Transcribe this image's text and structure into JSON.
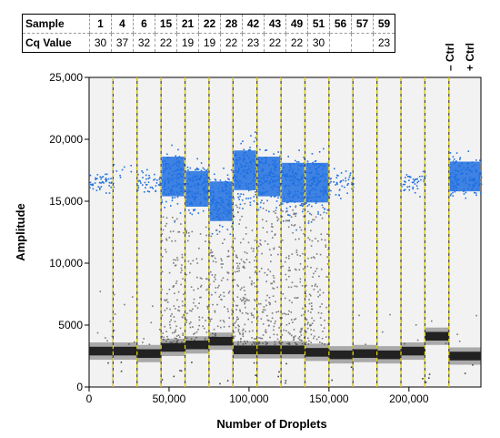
{
  "table": {
    "row_labels": [
      "Sample",
      "Cq Value"
    ],
    "samples": [
      "1",
      "4",
      "6",
      "15",
      "21",
      "22",
      "28",
      "42",
      "43",
      "49",
      "51",
      "56",
      "57",
      "59"
    ],
    "cq_values": [
      "30",
      "37",
      "32",
      "22",
      "19",
      "19",
      "22",
      "23",
      "22",
      "22",
      "30",
      "",
      "",
      "23"
    ]
  },
  "controls": {
    "neg": "– Ctrl",
    "pos": "+ Ctrl"
  },
  "chart_data": {
    "type": "scatter",
    "xlabel": "Number of Droplets",
    "ylabel": "Amplitude",
    "xlim": [
      0,
      245000
    ],
    "ylim": [
      0,
      25000
    ],
    "xticks": [
      0,
      50000,
      100000,
      150000,
      200000
    ],
    "xtick_labels": [
      "0",
      "50,000",
      "100,000",
      "150,000",
      "200,000"
    ],
    "yticks": [
      0,
      5000,
      10000,
      15000,
      20000,
      25000
    ],
    "ytick_labels": [
      "0",
      "5000",
      "10,000",
      "15,000",
      "20,000",
      "25,000"
    ],
    "well_boundaries": [
      15000,
      30000,
      45000,
      60000,
      75000,
      90000,
      105000,
      120000,
      135000,
      150000,
      165000,
      180000,
      195000,
      210000,
      225000
    ],
    "series": [
      {
        "kind": "positive",
        "color": "#1f6fe0",
        "wells": [
          {
            "x_range": [
              0,
              15000
            ],
            "center": 16500,
            "spread": 800,
            "density": "sparse"
          },
          {
            "x_range": [
              15000,
              30000
            ],
            "center": 17500,
            "spread": 500,
            "density": "rare"
          },
          {
            "x_range": [
              30000,
              45000
            ],
            "center": 16500,
            "spread": 800,
            "density": "sparse"
          },
          {
            "x_range": [
              45000,
              60000
            ],
            "center": 17000,
            "spread": 2000,
            "density": "dense"
          },
          {
            "x_range": [
              60000,
              75000
            ],
            "center": 16000,
            "spread": 1800,
            "density": "dense"
          },
          {
            "x_range": [
              75000,
              90000
            ],
            "center": 15000,
            "spread": 2000,
            "density": "dense"
          },
          {
            "x_range": [
              90000,
              105000
            ],
            "center": 17500,
            "spread": 2000,
            "density": "dense"
          },
          {
            "x_range": [
              105000,
              120000
            ],
            "center": 17000,
            "spread": 2000,
            "density": "dense"
          },
          {
            "x_range": [
              120000,
              135000
            ],
            "center": 16500,
            "spread": 2000,
            "density": "dense"
          },
          {
            "x_range": [
              135000,
              150000
            ],
            "center": 16500,
            "spread": 2000,
            "density": "dense"
          },
          {
            "x_range": [
              150000,
              165000
            ],
            "center": 16500,
            "spread": 800,
            "density": "sparse"
          },
          {
            "x_range": [
              195000,
              210000
            ],
            "center": 16500,
            "spread": 800,
            "density": "sparse"
          },
          {
            "x_range": [
              225000,
              245000
            ],
            "center": 17000,
            "spread": 1500,
            "density": "dense"
          }
        ]
      },
      {
        "kind": "negative",
        "color": "#222222",
        "wells": [
          {
            "x_range": [
              0,
              15000
            ],
            "center": 2900
          },
          {
            "x_range": [
              15000,
              30000
            ],
            "center": 2900
          },
          {
            "x_range": [
              30000,
              45000
            ],
            "center": 2700
          },
          {
            "x_range": [
              45000,
              60000
            ],
            "center": 3200
          },
          {
            "x_range": [
              60000,
              75000
            ],
            "center": 3400
          },
          {
            "x_range": [
              75000,
              90000
            ],
            "center": 3700
          },
          {
            "x_range": [
              90000,
              105000
            ],
            "center": 3000
          },
          {
            "x_range": [
              105000,
              120000
            ],
            "center": 3000
          },
          {
            "x_range": [
              120000,
              135000
            ],
            "center": 3000
          },
          {
            "x_range": [
              135000,
              150000
            ],
            "center": 2800
          },
          {
            "x_range": [
              150000,
              165000
            ],
            "center": 2600
          },
          {
            "x_range": [
              165000,
              180000
            ],
            "center": 2700
          },
          {
            "x_range": [
              180000,
              195000
            ],
            "center": 2600
          },
          {
            "x_range": [
              195000,
              210000
            ],
            "center": 2900
          },
          {
            "x_range": [
              210000,
              225000
            ],
            "center": 4100
          },
          {
            "x_range": [
              225000,
              245000
            ],
            "center": 2500
          }
        ]
      },
      {
        "kind": "intermediate",
        "color": "#7a7a7a",
        "wells": [
          {
            "x_range": [
              45000,
              60000
            ],
            "max": 14000,
            "count": 120
          },
          {
            "x_range": [
              60000,
              75000
            ],
            "max": 14000,
            "count": 90
          },
          {
            "x_range": [
              75000,
              90000
            ],
            "max": 13000,
            "count": 100
          },
          {
            "x_range": [
              90000,
              105000
            ],
            "max": 15000,
            "count": 140
          },
          {
            "x_range": [
              105000,
              120000
            ],
            "max": 15000,
            "count": 120
          },
          {
            "x_range": [
              120000,
              135000
            ],
            "max": 15000,
            "count": 130
          },
          {
            "x_range": [
              135000,
              150000
            ],
            "max": 15000,
            "count": 110
          },
          {
            "x_range": [
              0,
              45000
            ],
            "max": 8000,
            "count": 20
          },
          {
            "x_range": [
              150000,
              245000
            ],
            "max": 6000,
            "count": 15
          }
        ]
      }
    ]
  }
}
